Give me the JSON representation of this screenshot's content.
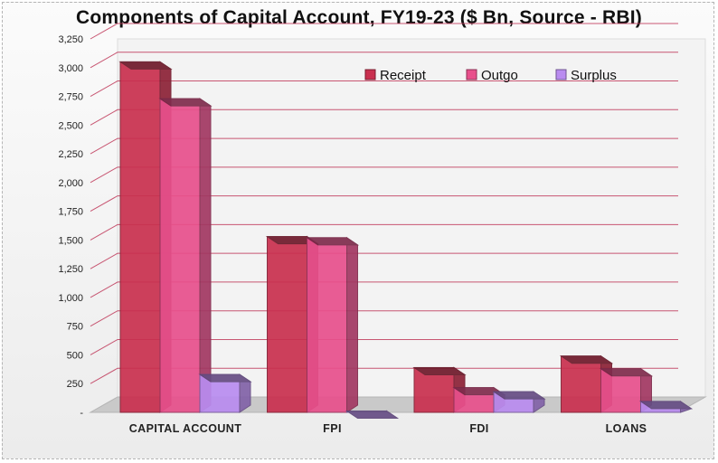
{
  "chart_data": {
    "type": "bar",
    "title": "Components  of Capital Account, FY19-23 ($ Bn, Source - RBI)",
    "xlabel": "",
    "ylabel": "",
    "categories": [
      "CAPITAL  ACCOUNT",
      "FPI",
      "FDI",
      "LOANS"
    ],
    "series": [
      {
        "name": "Receipt",
        "values": [
          3050,
          1530,
          390,
          490
        ]
      },
      {
        "name": "Outgo",
        "values": [
          2730,
          1520,
          215,
          380
        ]
      },
      {
        "name": "Surplus",
        "values": [
          330,
          12,
          180,
          95
        ]
      }
    ],
    "ylim": [
      0,
      3250
    ],
    "y_ticks": [
      "-",
      "250",
      "500",
      "750",
      "1,000",
      "1,250",
      "1,500",
      "1,750",
      "2,000",
      "2,250",
      "2,500",
      "2,750",
      "3,000",
      "3,250"
    ],
    "grid": true,
    "legend_position": "top-right",
    "colors": {
      "Receipt": "#c9304f",
      "Outgo": "#e8508c",
      "Surplus": "#b98cf0",
      "gridline": "#c0395a",
      "floor": "#c9c9c9",
      "wall": "#f3f3f3"
    }
  }
}
